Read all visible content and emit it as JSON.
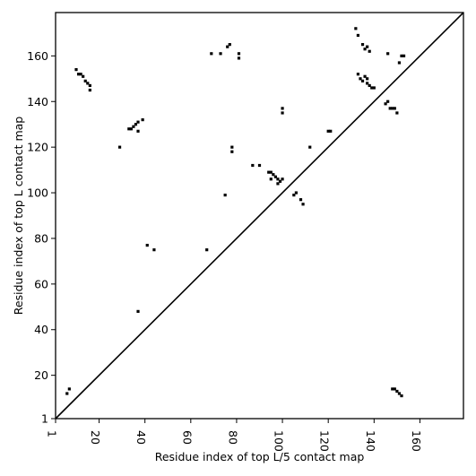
{
  "chart_data": {
    "type": "scatter",
    "title": "",
    "xlabel": "Residue index of top L/5 contact map",
    "ylabel": "Residue index of top L contact map",
    "xlim": [
      1,
      179
    ],
    "ylim": [
      1,
      179
    ],
    "x_ticks": [
      1,
      20,
      40,
      60,
      80,
      100,
      120,
      140,
      160
    ],
    "y_ticks": [
      1,
      20,
      40,
      60,
      80,
      100,
      120,
      140,
      160
    ],
    "grid": false,
    "legend": "none",
    "diagonal": true,
    "marker": "square",
    "point_color": "#000000",
    "line_color": "#000000",
    "series": [
      {
        "x": [
          6,
          7,
          10,
          11,
          12,
          13,
          14,
          15,
          16,
          16,
          29,
          33,
          34,
          35,
          36,
          37,
          37,
          39,
          37,
          41,
          44,
          67,
          69,
          73,
          76,
          77,
          78,
          78,
          81,
          81,
          75,
          87,
          90,
          94,
          95,
          96,
          97,
          98,
          99,
          100,
          95,
          98,
          100,
          100,
          105,
          106,
          108,
          109,
          112,
          120,
          121,
          132,
          133,
          135,
          136,
          137,
          138,
          133,
          134,
          135,
          136,
          137,
          138,
          139,
          137,
          140,
          145,
          146,
          147,
          148,
          149,
          150,
          146,
          151,
          152,
          153,
          148,
          149,
          150,
          151,
          152
        ],
        "y": [
          12,
          14,
          154,
          152,
          152,
          151,
          149,
          148,
          147,
          145,
          120,
          128,
          128,
          129,
          130,
          131,
          127,
          132,
          48,
          77,
          75,
          75,
          161,
          161,
          164,
          165,
          120,
          118,
          161,
          159,
          99,
          112,
          112,
          109,
          109,
          108,
          107,
          106,
          105,
          106,
          106,
          104,
          137,
          135,
          99,
          100,
          97,
          95,
          120,
          127,
          127,
          172,
          169,
          165,
          163,
          164,
          162,
          152,
          150,
          149,
          151,
          148,
          147,
          146,
          150,
          146,
          139,
          140,
          137,
          137,
          137,
          135,
          161,
          157,
          160,
          160,
          14,
          14,
          13,
          12,
          11
        ]
      }
    ]
  }
}
